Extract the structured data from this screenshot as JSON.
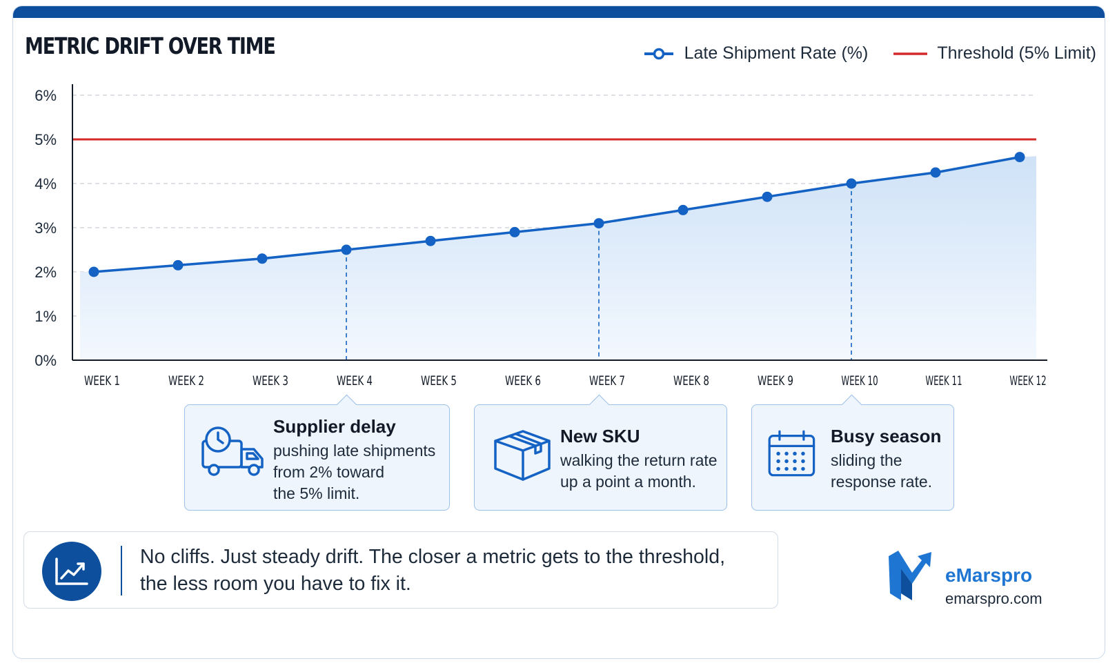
{
  "colors": {
    "accent": "#0d4f9c",
    "series": "#1462c4",
    "threshold": "#d42a2a",
    "fill": "#dceafa",
    "callout_bg": "#eef5fd",
    "brand": "#1f76d2"
  },
  "header": {
    "title": "METRIC DRIFT OVER TIME"
  },
  "legend": {
    "series_label": "Late Shipment Rate (%)",
    "threshold_label": "Threshold (5% Limit)"
  },
  "chart_data": {
    "type": "line",
    "title": "METRIC DRIFT OVER TIME",
    "xlabel": "",
    "ylabel": "",
    "categories": [
      "WEEK 1",
      "WEEK 2",
      "WEEK 3",
      "WEEK 4",
      "WEEK 5",
      "WEEK 6",
      "WEEK 7",
      "WEEK 8",
      "WEEK 9",
      "WEEK 10",
      "WEEK 11",
      "WEEK 12"
    ],
    "series": [
      {
        "name": "Late Shipment Rate (%)",
        "values": [
          2.0,
          2.15,
          2.3,
          2.5,
          2.7,
          2.9,
          3.1,
          3.4,
          3.7,
          4.0,
          4.25,
          4.6
        ],
        "color": "#1462c4",
        "area_fill": true
      }
    ],
    "threshold": {
      "name": "Threshold (5% Limit)",
      "value": 5,
      "color": "#d42a2a"
    },
    "ylim": [
      0,
      6
    ],
    "yticks": [
      0,
      1,
      2,
      3,
      4,
      5,
      6
    ],
    "ytick_labels": [
      "0%",
      "1%",
      "2%",
      "3%",
      "4%",
      "5%",
      "6%"
    ],
    "grid": "horizontal-dashed",
    "legend_position": "top-right",
    "annotations": [
      {
        "category": "WEEK 4",
        "icon": "truck-clock-icon",
        "title": "Supplier delay",
        "lines": [
          "pushing late shipments",
          "from 2% toward",
          "the 5% limit."
        ]
      },
      {
        "category": "WEEK 7",
        "icon": "box-icon",
        "title": "New SKU",
        "lines": [
          "walking the return rate",
          "up a point a month."
        ]
      },
      {
        "category": "WEEK 10",
        "icon": "calendar-icon",
        "title": "Busy season",
        "lines": [
          "sliding the",
          "response rate."
        ]
      }
    ]
  },
  "footer": {
    "note_line1": "No cliffs. Just steady drift. The closer a metric gets to the threshold,",
    "note_line2": "the less room you have to fix it.",
    "note_icon": "trend-chart-icon",
    "brand_name": "eMarspro",
    "brand_url": "emarspro.com",
    "brand_logo_icon": "emarspro-logo-icon"
  }
}
